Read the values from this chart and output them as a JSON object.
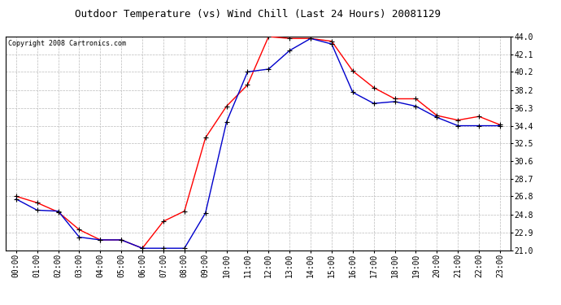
{
  "title": "Outdoor Temperature (vs) Wind Chill (Last 24 Hours) 20081129",
  "copyright": "Copyright 2008 Cartronics.com",
  "x_labels": [
    "00:00",
    "01:00",
    "02:00",
    "03:00",
    "04:00",
    "05:00",
    "06:00",
    "07:00",
    "08:00",
    "09:00",
    "10:00",
    "11:00",
    "12:00",
    "13:00",
    "14:00",
    "15:00",
    "16:00",
    "17:00",
    "18:00",
    "19:00",
    "20:00",
    "21:00",
    "22:00",
    "23:00"
  ],
  "temp_red": [
    26.8,
    26.1,
    25.1,
    23.2,
    22.1,
    22.1,
    21.2,
    24.1,
    25.2,
    33.1,
    36.5,
    38.8,
    44.0,
    43.8,
    43.8,
    43.5,
    40.3,
    38.5,
    37.3,
    37.3,
    35.5,
    35.0,
    35.4,
    34.5
  ],
  "wind_chill_blue": [
    26.5,
    25.3,
    25.2,
    22.4,
    22.1,
    22.1,
    21.2,
    21.2,
    21.2,
    25.0,
    34.8,
    40.2,
    40.5,
    42.5,
    43.8,
    43.2,
    38.0,
    36.8,
    37.0,
    36.5,
    35.3,
    34.4,
    34.4,
    34.4
  ],
  "y_ticks": [
    21.0,
    22.9,
    24.8,
    26.8,
    28.7,
    30.6,
    32.5,
    34.4,
    36.3,
    38.2,
    40.2,
    42.1,
    44.0
  ],
  "y_min": 21.0,
  "y_max": 44.0,
  "line_color_red": "#ff0000",
  "line_color_blue": "#0000cc",
  "marker_color": "#000000",
  "bg_color": "#ffffff",
  "plot_bg_color": "#ffffff",
  "grid_color": "#bbbbbb",
  "title_fontsize": 9,
  "copyright_fontsize": 6,
  "tick_fontsize": 7
}
